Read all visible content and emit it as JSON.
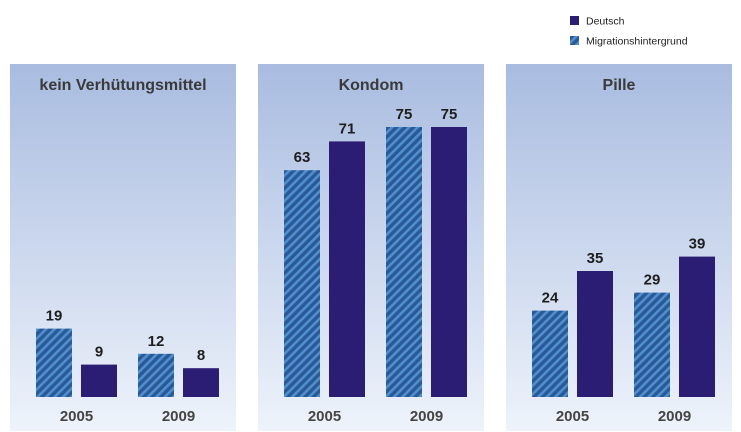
{
  "legend": {
    "items": [
      {
        "label": "Deutsch",
        "style": "solid"
      },
      {
        "label": "Migrationshintergrund",
        "style": "hatched"
      }
    ]
  },
  "colors": {
    "deutsch": "#2b1d74",
    "migration_base": "#2a5a95",
    "migration_stripe": "#4f8fd0",
    "panel_top": "#a9bce0",
    "panel_bottom": "#eef3fb",
    "label": "#1e1e1e",
    "axis_label": "#444444"
  },
  "chart_data": [
    {
      "type": "bar",
      "title": "kein Verhütungsmittel",
      "categories": [
        "2005",
        "2009"
      ],
      "series": [
        {
          "name": "Migrationshintergrund",
          "values": [
            19,
            12
          ]
        },
        {
          "name": "Deutsch",
          "values": [
            9,
            8
          ]
        }
      ],
      "ylim": [
        0,
        80
      ],
      "grid": false,
      "legend_position": "top-right"
    },
    {
      "type": "bar",
      "title": "Kondom",
      "categories": [
        "2005",
        "2009"
      ],
      "series": [
        {
          "name": "Migrationshintergrund",
          "values": [
            63,
            75
          ]
        },
        {
          "name": "Deutsch",
          "values": [
            71,
            75
          ]
        }
      ],
      "ylim": [
        0,
        80
      ],
      "grid": false,
      "legend_position": "top-right"
    },
    {
      "type": "bar",
      "title": "Pille",
      "categories": [
        "2005",
        "2009"
      ],
      "series": [
        {
          "name": "Migrationshintergrund",
          "values": [
            24,
            29
          ]
        },
        {
          "name": "Deutsch",
          "values": [
            35,
            39
          ]
        }
      ],
      "ylim": [
        0,
        80
      ],
      "grid": false,
      "legend_position": "top-right"
    }
  ]
}
